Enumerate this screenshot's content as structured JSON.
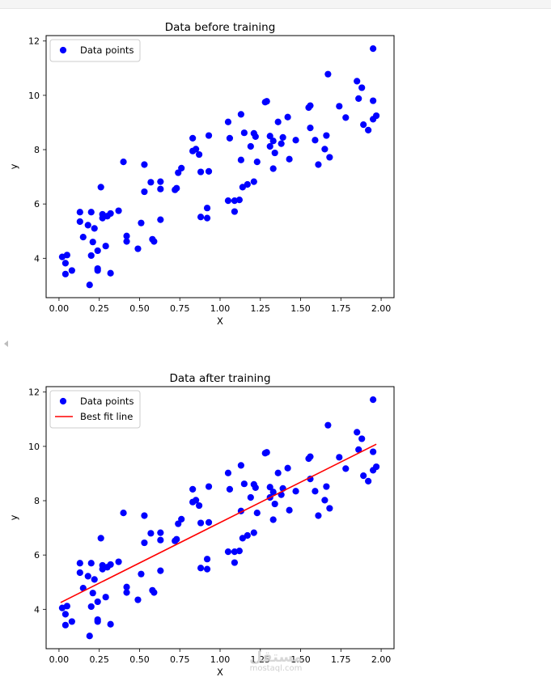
{
  "chart_data": [
    {
      "type": "scatter",
      "title": "Data before training",
      "xlabel": "X",
      "ylabel": "y",
      "xlim": [
        -0.08,
        2.08
      ],
      "ylim": [
        2.55,
        12.2
      ],
      "xticks": [
        "0.00",
        "0.25",
        "0.50",
        "0.75",
        "1.00",
        "1.25",
        "1.50",
        "1.75",
        "2.00"
      ],
      "yticks": [
        "4",
        "6",
        "8",
        "10",
        "12"
      ],
      "legend": {
        "placement": "upper-left",
        "entries": [
          "Data points"
        ]
      },
      "colors": {
        "points": "#0000ff"
      },
      "series": [
        {
          "name": "Data points",
          "kind": "scatter",
          "points": [
            [
              0.02,
              4.05
            ],
            [
              0.04,
              3.82
            ],
            [
              0.05,
              4.12
            ],
            [
              0.04,
              3.42
            ],
            [
              0.08,
              3.55
            ],
            [
              0.13,
              5.7
            ],
            [
              0.13,
              5.35
            ],
            [
              0.15,
              4.78
            ],
            [
              0.18,
              5.22
            ],
            [
              0.19,
              3.02
            ],
            [
              0.2,
              4.1
            ],
            [
              0.2,
              5.7
            ],
            [
              0.21,
              4.6
            ],
            [
              0.22,
              5.1
            ],
            [
              0.24,
              4.28
            ],
            [
              0.24,
              3.62
            ],
            [
              0.24,
              3.55
            ],
            [
              0.26,
              6.62
            ],
            [
              0.27,
              5.62
            ],
            [
              0.27,
              5.48
            ],
            [
              0.29,
              4.45
            ],
            [
              0.3,
              5.55
            ],
            [
              0.32,
              5.65
            ],
            [
              0.32,
              3.45
            ],
            [
              0.37,
              5.75
            ],
            [
              0.4,
              7.55
            ],
            [
              0.42,
              4.82
            ],
            [
              0.42,
              4.62
            ],
            [
              0.49,
              4.35
            ],
            [
              0.51,
              5.3
            ],
            [
              0.53,
              7.45
            ],
            [
              0.53,
              6.45
            ],
            [
              0.57,
              6.8
            ],
            [
              0.58,
              4.7
            ],
            [
              0.59,
              4.62
            ],
            [
              0.63,
              6.82
            ],
            [
              0.63,
              6.55
            ],
            [
              0.63,
              5.42
            ],
            [
              0.72,
              6.52
            ],
            [
              0.73,
              6.58
            ],
            [
              0.74,
              7.15
            ],
            [
              0.76,
              7.32
            ],
            [
              0.83,
              8.42
            ],
            [
              0.83,
              7.95
            ],
            [
              0.85,
              8.02
            ],
            [
              0.87,
              7.82
            ],
            [
              0.88,
              7.18
            ],
            [
              0.88,
              5.52
            ],
            [
              0.92,
              5.85
            ],
            [
              0.92,
              5.48
            ],
            [
              0.93,
              7.2
            ],
            [
              0.93,
              8.52
            ],
            [
              1.05,
              9.02
            ],
            [
              1.05,
              6.12
            ],
            [
              1.06,
              8.42
            ],
            [
              1.09,
              6.12
            ],
            [
              1.09,
              5.72
            ],
            [
              1.12,
              6.15
            ],
            [
              1.13,
              9.3
            ],
            [
              1.13,
              7.62
            ],
            [
              1.14,
              6.62
            ],
            [
              1.15,
              8.62
            ],
            [
              1.17,
              6.72
            ],
            [
              1.19,
              8.12
            ],
            [
              1.21,
              6.82
            ],
            [
              1.21,
              8.6
            ],
            [
              1.22,
              8.48
            ],
            [
              1.23,
              7.55
            ],
            [
              1.28,
              9.75
            ],
            [
              1.29,
              9.78
            ],
            [
              1.31,
              8.5
            ],
            [
              1.31,
              8.12
            ],
            [
              1.33,
              8.32
            ],
            [
              1.33,
              7.3
            ],
            [
              1.34,
              7.88
            ],
            [
              1.36,
              9.02
            ],
            [
              1.38,
              8.22
            ],
            [
              1.39,
              8.45
            ],
            [
              1.42,
              9.2
            ],
            [
              1.43,
              7.65
            ],
            [
              1.47,
              8.35
            ],
            [
              1.55,
              9.55
            ],
            [
              1.56,
              9.62
            ],
            [
              1.56,
              8.8
            ],
            [
              1.59,
              8.35
            ],
            [
              1.61,
              7.45
            ],
            [
              1.65,
              8.02
            ],
            [
              1.66,
              8.52
            ],
            [
              1.67,
              10.78
            ],
            [
              1.68,
              7.72
            ],
            [
              1.74,
              9.6
            ],
            [
              1.78,
              9.18
            ],
            [
              1.85,
              10.52
            ],
            [
              1.86,
              9.88
            ],
            [
              1.88,
              10.28
            ],
            [
              1.89,
              8.92
            ],
            [
              1.92,
              8.72
            ],
            [
              1.95,
              11.72
            ],
            [
              1.95,
              9.8
            ],
            [
              1.95,
              9.12
            ],
            [
              1.97,
              9.25
            ]
          ]
        }
      ]
    },
    {
      "type": "scatter",
      "title": "Data after training",
      "xlabel": "X",
      "ylabel": "y",
      "xlim": [
        -0.08,
        2.08
      ],
      "ylim": [
        2.55,
        12.2
      ],
      "xticks": [
        "0.00",
        "0.25",
        "0.50",
        "0.75",
        "1.00",
        "1.25",
        "1.50",
        "1.75",
        "2.00"
      ],
      "yticks": [
        "4",
        "6",
        "8",
        "10",
        "12"
      ],
      "legend": {
        "placement": "upper-left",
        "entries": [
          "Data points",
          "Best fit line"
        ]
      },
      "colors": {
        "points": "#0000ff",
        "line": "#ff0000"
      },
      "series": [
        {
          "name": "Data points",
          "kind": "scatter",
          "points": [
            [
              0.02,
              4.05
            ],
            [
              0.04,
              3.82
            ],
            [
              0.05,
              4.12
            ],
            [
              0.04,
              3.42
            ],
            [
              0.08,
              3.55
            ],
            [
              0.13,
              5.7
            ],
            [
              0.13,
              5.35
            ],
            [
              0.15,
              4.78
            ],
            [
              0.18,
              5.22
            ],
            [
              0.19,
              3.02
            ],
            [
              0.2,
              4.1
            ],
            [
              0.2,
              5.7
            ],
            [
              0.21,
              4.6
            ],
            [
              0.22,
              5.1
            ],
            [
              0.24,
              4.28
            ],
            [
              0.24,
              3.62
            ],
            [
              0.24,
              3.55
            ],
            [
              0.26,
              6.62
            ],
            [
              0.27,
              5.62
            ],
            [
              0.27,
              5.48
            ],
            [
              0.29,
              4.45
            ],
            [
              0.3,
              5.55
            ],
            [
              0.32,
              5.65
            ],
            [
              0.32,
              3.45
            ],
            [
              0.37,
              5.75
            ],
            [
              0.4,
              7.55
            ],
            [
              0.42,
              4.82
            ],
            [
              0.42,
              4.62
            ],
            [
              0.49,
              4.35
            ],
            [
              0.51,
              5.3
            ],
            [
              0.53,
              7.45
            ],
            [
              0.53,
              6.45
            ],
            [
              0.57,
              6.8
            ],
            [
              0.58,
              4.7
            ],
            [
              0.59,
              4.62
            ],
            [
              0.63,
              6.82
            ],
            [
              0.63,
              6.55
            ],
            [
              0.63,
              5.42
            ],
            [
              0.72,
              6.52
            ],
            [
              0.73,
              6.58
            ],
            [
              0.74,
              7.15
            ],
            [
              0.76,
              7.32
            ],
            [
              0.83,
              8.42
            ],
            [
              0.83,
              7.95
            ],
            [
              0.85,
              8.02
            ],
            [
              0.87,
              7.82
            ],
            [
              0.88,
              7.18
            ],
            [
              0.88,
              5.52
            ],
            [
              0.92,
              5.85
            ],
            [
              0.92,
              5.48
            ],
            [
              0.93,
              7.2
            ],
            [
              0.93,
              8.52
            ],
            [
              1.05,
              9.02
            ],
            [
              1.05,
              6.12
            ],
            [
              1.06,
              8.42
            ],
            [
              1.09,
              6.12
            ],
            [
              1.09,
              5.72
            ],
            [
              1.12,
              6.15
            ],
            [
              1.13,
              9.3
            ],
            [
              1.13,
              7.62
            ],
            [
              1.14,
              6.62
            ],
            [
              1.15,
              8.62
            ],
            [
              1.17,
              6.72
            ],
            [
              1.19,
              8.12
            ],
            [
              1.21,
              6.82
            ],
            [
              1.21,
              8.6
            ],
            [
              1.22,
              8.48
            ],
            [
              1.23,
              7.55
            ],
            [
              1.28,
              9.75
            ],
            [
              1.29,
              9.78
            ],
            [
              1.31,
              8.5
            ],
            [
              1.31,
              8.12
            ],
            [
              1.33,
              8.32
            ],
            [
              1.33,
              7.3
            ],
            [
              1.34,
              7.88
            ],
            [
              1.36,
              9.02
            ],
            [
              1.38,
              8.22
            ],
            [
              1.39,
              8.45
            ],
            [
              1.42,
              9.2
            ],
            [
              1.43,
              7.65
            ],
            [
              1.47,
              8.35
            ],
            [
              1.55,
              9.55
            ],
            [
              1.56,
              9.62
            ],
            [
              1.56,
              8.8
            ],
            [
              1.59,
              8.35
            ],
            [
              1.61,
              7.45
            ],
            [
              1.65,
              8.02
            ],
            [
              1.66,
              8.52
            ],
            [
              1.67,
              10.78
            ],
            [
              1.68,
              7.72
            ],
            [
              1.74,
              9.6
            ],
            [
              1.78,
              9.18
            ],
            [
              1.85,
              10.52
            ],
            [
              1.86,
              9.88
            ],
            [
              1.88,
              10.28
            ],
            [
              1.89,
              8.92
            ],
            [
              1.92,
              8.72
            ],
            [
              1.95,
              11.72
            ],
            [
              1.95,
              9.8
            ],
            [
              1.95,
              9.12
            ],
            [
              1.97,
              9.25
            ]
          ]
        },
        {
          "name": "Best fit line",
          "kind": "line",
          "points": [
            [
              0.01,
              4.25
            ],
            [
              1.97,
              10.08
            ]
          ]
        }
      ]
    }
  ],
  "watermark": {
    "main": "مستقل",
    "sub": "mostaql.com"
  }
}
